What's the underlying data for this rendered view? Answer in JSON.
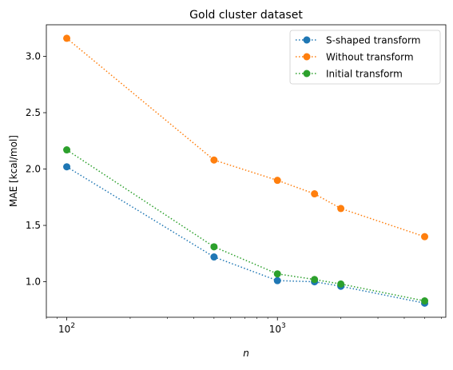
{
  "chart_data": {
    "type": "line",
    "title": "Gold cluster dataset",
    "xlabel": "n",
    "ylabel": "MAE [kcal/mol]",
    "xscale": "log",
    "xlim": [
      80,
      6300
    ],
    "ylim": [
      0.685,
      3.28
    ],
    "x_ticks": [
      {
        "value": 100,
        "base": "10",
        "exp": "2"
      },
      {
        "value": 1000,
        "base": "10",
        "exp": "3"
      }
    ],
    "y_ticks": [
      "1.0",
      "1.5",
      "2.0",
      "2.5",
      "3.0"
    ],
    "y_tick_values": [
      1.0,
      1.5,
      2.0,
      2.5,
      3.0
    ],
    "x": [
      100,
      500,
      1000,
      1500,
      2000,
      5000
    ],
    "series": [
      {
        "name": "S-shaped transform",
        "color": "#1f77b4",
        "values": [
          2.02,
          1.22,
          1.01,
          1.0,
          0.96,
          0.81
        ]
      },
      {
        "name": "Without transform",
        "color": "#ff7f0e",
        "values": [
          3.16,
          2.08,
          1.9,
          1.78,
          1.65,
          1.4
        ]
      },
      {
        "name": "Initial transform",
        "color": "#2ca02c",
        "values": [
          2.17,
          1.31,
          1.07,
          1.02,
          0.98,
          0.83
        ]
      }
    ],
    "legend_position": "top-right",
    "grid": false
  }
}
